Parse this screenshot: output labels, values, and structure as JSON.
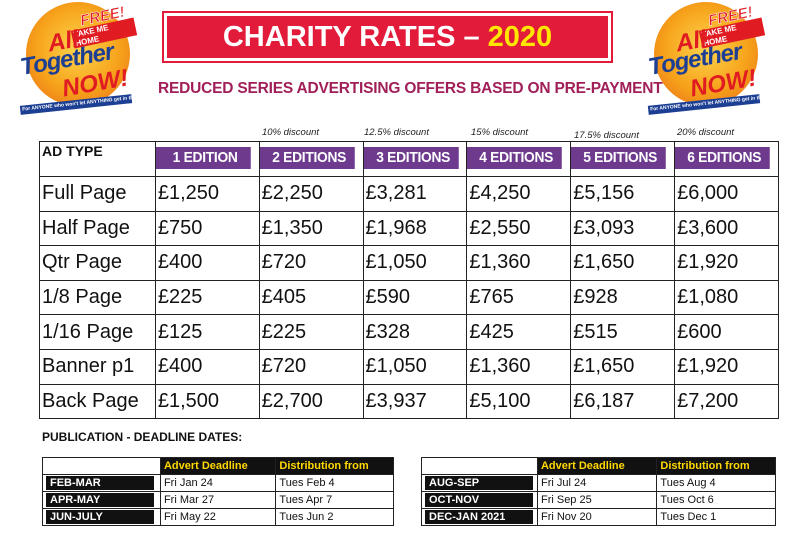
{
  "logo": {
    "free": "FREE!",
    "take": "TAKE ME HOME",
    "line1": "All",
    "line2": "Together",
    "line3": "NOW!",
    "tagline": "For ANYONE who won't let ANYTHING get in the way"
  },
  "title": {
    "main": "CHARITY RATES –",
    "year": "2020"
  },
  "subtitle": "REDUCED SERIES ADVERTISING OFFERS BASED ON PRE-PAYMENT",
  "rates": {
    "ad_type_label": "AD TYPE",
    "discounts": [
      "",
      "10% discount",
      "12.5% discount",
      "15% discount",
      "17.5% discount",
      "20% discount"
    ],
    "columns": [
      "1 EDITION",
      "2 EDITIONS",
      "3 EDITIONS",
      "4 EDITIONS",
      "5 EDITIONS",
      "6 EDITIONS"
    ],
    "rows": [
      {
        "type": "Full Page",
        "prices": [
          "£1,250",
          "£2,250",
          "£3,281",
          "£4,250",
          "£5,156",
          "£6,000"
        ]
      },
      {
        "type": "Half Page",
        "prices": [
          "£750",
          "£1,350",
          "£1,968",
          "£2,550",
          "£3,093",
          "£3,600"
        ]
      },
      {
        "type": "Qtr Page",
        "prices": [
          "£400",
          "£720",
          "£1,050",
          "£1,360",
          "£1,650",
          "£1,920"
        ]
      },
      {
        "type": "1/8 Page",
        "prices": [
          "£225",
          "£405",
          "£590",
          "£765",
          "£928",
          "£1,080"
        ]
      },
      {
        "type": "1/16 Page",
        "prices": [
          "£125",
          "£225",
          "£328",
          "£425",
          "£515",
          "£600"
        ]
      },
      {
        "type": "Banner p1",
        "prices": [
          "£400",
          "£720",
          "£1,050",
          "£1,360",
          "£1,650",
          "£1,920"
        ]
      },
      {
        "type": "Back Page",
        "prices": [
          "£1,500",
          "£2,700",
          "£3,937",
          "£5,100",
          "£6,187",
          "£7,200"
        ]
      }
    ]
  },
  "deadlines": {
    "title": "PUBLICATION - DEADLINE DATES:",
    "headers": [
      "Advert Deadline",
      "Distribution from"
    ],
    "left": [
      {
        "period": "FEB-MAR",
        "advert": "Fri Jan 24",
        "distribution": "Tues Feb 4"
      },
      {
        "period": "APR-MAY",
        "advert": "Fri Mar 27",
        "distribution": "Tues Apr 7"
      },
      {
        "period": "JUN-JULY",
        "advert": "Fri May 22",
        "distribution": "Tues Jun 2"
      }
    ],
    "right": [
      {
        "period": "AUG-SEP",
        "advert": "Fri Jul 24",
        "distribution": "Tues Aug 4"
      },
      {
        "period": "OCT-NOV",
        "advert": "Fri Sep 25",
        "distribution": "Tues Oct 6"
      },
      {
        "period": "DEC-JAN 2021",
        "advert": "Fri Nov 20",
        "distribution": "Tues Dec 1"
      }
    ]
  }
}
